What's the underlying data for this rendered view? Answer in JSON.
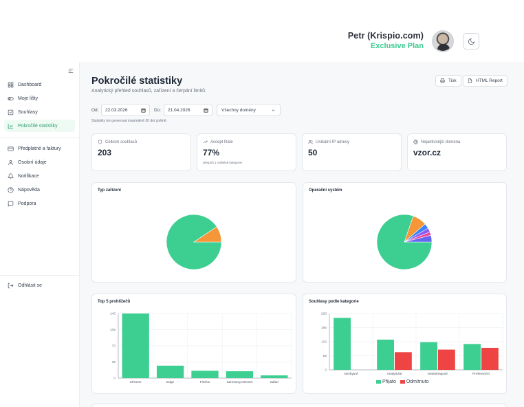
{
  "header": {
    "user_name": "Petr (Krispio.com)",
    "plan": "Exclusive Plan",
    "avatar_icon": "avatar",
    "theme_icon": "moon-icon"
  },
  "sidebar": {
    "items": [
      {
        "label": "Dashboard",
        "icon": "grid-icon",
        "active": false
      },
      {
        "label": "Moje lišty",
        "icon": "toggle-icon",
        "active": false
      },
      {
        "label": "Souhlasy",
        "icon": "check-square-icon",
        "active": false
      },
      {
        "label": "Pokročilé statistiky",
        "icon": "bar-chart-icon",
        "active": true
      }
    ],
    "items2": [
      {
        "label": "Předplatné a faktury",
        "icon": "credit-card-icon"
      },
      {
        "label": "Osobní údaje",
        "icon": "user-icon"
      },
      {
        "label": "Notifikace",
        "icon": "bell-icon"
      },
      {
        "label": "Nápověda",
        "icon": "help-icon"
      },
      {
        "label": "Podpora",
        "icon": "chat-icon"
      }
    ],
    "logout": "Odhlásit se"
  },
  "page": {
    "title": "Pokročilé statistiky",
    "subtitle": "Analytický přehled souhlasů, zařízení a čerpání limitů.",
    "print_label": "Tisk",
    "report_label": "HTML Report"
  },
  "filters": {
    "from_label": "Od:",
    "from_value": "22.03.2026",
    "to_label": "Do:",
    "to_value": "21.04.2026",
    "domain_value": "Všechny domény",
    "note": "Statistiky lze generovat maximálně 30 dní zpětně."
  },
  "stats": [
    {
      "label": "Celkem souhlasů",
      "value": "203",
      "note": "",
      "icon": "shield-icon"
    },
    {
      "label": "Accept Rate",
      "value": "77%",
      "note": "alespoň 1 volitelná kategorie",
      "icon": "trend-icon"
    },
    {
      "label": "Unikátní IP adresy",
      "value": "50",
      "note": "",
      "icon": "users-icon"
    },
    {
      "label": "Nejaktivnější doména",
      "value": "vzor.cz",
      "note": "",
      "icon": "globe-icon"
    }
  ],
  "colors": {
    "green": "#3ccf91",
    "orange": "#f59638",
    "red": "#ef4444",
    "accent": "#3dcb91"
  },
  "chart_data": [
    {
      "type": "pie",
      "title": "Typ zařízení",
      "slices": [
        {
          "value": 184,
          "color": "#3ccf91"
        },
        {
          "value": 19,
          "color": "#f59638"
        }
      ]
    },
    {
      "type": "pie",
      "title": "Operační systém",
      "slices": [
        {
          "value": 163,
          "color": "#3ccf91"
        },
        {
          "value": 17,
          "color": "#f59638"
        },
        {
          "value": 6,
          "color": "#3b82f6"
        },
        {
          "value": 5,
          "color": "#8b5cf6"
        },
        {
          "value": 4,
          "color": "#ec4899"
        },
        {
          "value": 8,
          "color": "#6366f1"
        }
      ]
    },
    {
      "type": "bar",
      "title": "Top 5 prohlížečů",
      "categories": [
        "Chrome",
        "Edge",
        "Firefox",
        "Samsung Internet",
        "Safari"
      ],
      "values": [
        140,
        27,
        16,
        15,
        6
      ],
      "ylim": [
        0,
        140
      ],
      "yticks": [
        "0",
        "35",
        "70",
        "105",
        "140"
      ],
      "grid": true
    },
    {
      "type": "bar",
      "title": "Souhlasy podle kategorie",
      "categories": [
        "Nezbytné",
        "Analytické",
        "Marketingové",
        "Preferenční"
      ],
      "series": [
        {
          "name": "Přijato",
          "values": [
            203,
            118,
            108,
            101
          ],
          "color": "#3ccf91"
        },
        {
          "name": "Odmítnuto",
          "values": [
            0,
            69,
            79,
            86
          ],
          "color": "#ef4444"
        }
      ],
      "ylim": [
        0,
        220
      ],
      "yticks": [
        "0",
        "55",
        "110",
        "165",
        "220"
      ],
      "grid": true,
      "legend": "bottom"
    }
  ]
}
